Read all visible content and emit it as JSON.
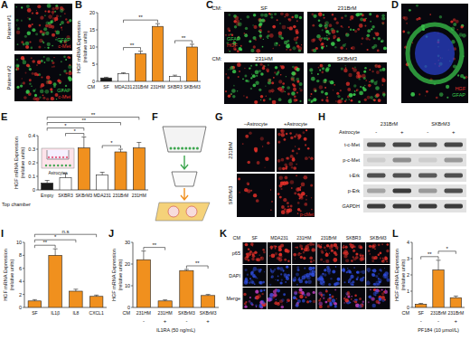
{
  "chart_data": [
    {
      "panel": "B",
      "type": "bar",
      "y_label": "HGF mRNA Expression (relative units)",
      "category_axis_label": "CM",
      "categories": [
        "SF",
        "MDA231",
        "231BrM",
        "231HM",
        "SKBR3",
        "SKBrM3"
      ],
      "values": [
        1,
        2.2,
        8,
        16,
        1.5,
        10
      ],
      "errors": [
        0.2,
        0.3,
        0.8,
        0.8,
        0.3,
        0.8
      ],
      "colors": [
        "#1a1a1a",
        "#ffffff",
        "#f0901e",
        "#f0901e",
        "#ffffff",
        "#f0901e"
      ],
      "ylim": [
        0,
        20
      ],
      "yticks": [
        0,
        5,
        10,
        15,
        20
      ],
      "significance": [
        {
          "from": 1,
          "to": 2,
          "label": "**"
        },
        {
          "from": 1,
          "to": 3,
          "label": "**"
        },
        {
          "from": 4,
          "to": 5,
          "label": "**"
        }
      ]
    },
    {
      "panel": "E",
      "type": "bar",
      "y_label": "HGF mRNA Expression (relative units)",
      "category_axis_label": "Top chamber",
      "inset_label": "Astrocytes",
      "categories": [
        "Empty",
        "SKBR3",
        "SKBrM3",
        "MDA231",
        "231BrM",
        "231HM"
      ],
      "values": [
        0.05,
        0.09,
        0.31,
        0.11,
        0.28,
        0.31
      ],
      "errors": [
        0.02,
        0.03,
        0.08,
        0.02,
        0.02,
        0.04
      ],
      "colors": [
        "#1a1a1a",
        "#ffffff",
        "#f0901e",
        "#ffffff",
        "#f0901e",
        "#f0901e"
      ],
      "ylim": [
        0,
        0.4
      ],
      "yticks": [
        0,
        0.1,
        0.2,
        0.3,
        0.4
      ],
      "significance": [
        {
          "from": 1,
          "to": 2,
          "label": "*"
        },
        {
          "from": 3,
          "to": 4,
          "label": "*"
        },
        {
          "from": 0,
          "to": 2,
          "label": "*"
        },
        {
          "from": 0,
          "to": 4,
          "label": "**"
        },
        {
          "from": 0,
          "to": 5,
          "label": "**"
        }
      ]
    },
    {
      "panel": "I",
      "type": "bar",
      "y_label": "HGF mRNA Expression (relative units)",
      "categories": [
        "SF",
        "IL1β",
        "IL8",
        "CXCL1"
      ],
      "values": [
        1,
        8,
        2.5,
        1.7
      ],
      "errors": [
        0.2,
        1,
        0.3,
        0.2
      ],
      "colors": [
        "#f0901e",
        "#f0901e",
        "#f0901e",
        "#f0901e"
      ],
      "ylim": [
        0,
        10
      ],
      "yticks": [
        0,
        2,
        4,
        6,
        8,
        10
      ],
      "significance": [
        {
          "from": 0,
          "to": 1,
          "label": "**"
        },
        {
          "from": 0,
          "to": 2,
          "label": "*"
        },
        {
          "from": 0,
          "to": 3,
          "label": "n.s"
        }
      ]
    },
    {
      "panel": "J",
      "type": "bar",
      "y_label": "HGF mRNA Expression (relative units)",
      "category_axis_label": "CM",
      "categories": [
        "231HM",
        "231HM",
        "SKBrM3",
        "SKBrM3"
      ],
      "treatment": {
        "label": "IL1RA (50 ng/mL)",
        "values": [
          "-",
          "+",
          "-",
          "+"
        ]
      },
      "values": [
        22,
        3,
        17,
        5.5
      ],
      "errors": [
        4,
        0.5,
        0.5,
        0.5
      ],
      "colors": [
        "#f0901e",
        "#f0901e",
        "#f0901e",
        "#f0901e"
      ],
      "ylim": [
        0,
        30
      ],
      "yticks": [
        0,
        10,
        20,
        30
      ],
      "significance": [
        {
          "from": 0,
          "to": 1,
          "label": "**"
        },
        {
          "from": 2,
          "to": 3,
          "label": "**"
        }
      ]
    },
    {
      "panel": "L",
      "type": "bar",
      "y_label": "HGF mRNA Expression (relative units)",
      "category_axis_label": "CM",
      "categories": [
        "SF",
        "231BrM",
        "231BrM"
      ],
      "treatment": {
        "label": "PF184 (10 μmol/L)",
        "values": [
          "-",
          "-",
          "+"
        ]
      },
      "values": [
        0.2,
        2.3,
        0.6
      ],
      "errors": [
        0.05,
        0.6,
        0.1
      ],
      "colors": [
        "#f0901e",
        "#f0901e",
        "#f0901e"
      ],
      "ylim": [
        0,
        4
      ],
      "yticks": [
        0,
        1,
        2,
        3,
        4
      ],
      "significance": [
        {
          "from": 0,
          "to": 1,
          "label": "**"
        },
        {
          "from": 1,
          "to": 2,
          "label": "*"
        }
      ]
    }
  ],
  "image_panels": [
    {
      "panel": "A",
      "rows": [
        "Patient #1",
        "Patient #2"
      ],
      "stains": [
        {
          "name": "GFAP",
          "color": "#3ccf4e"
        },
        {
          "name": "c-Met",
          "color": "#e8312a"
        }
      ]
    },
    {
      "panel": "C",
      "prefix": "CM:",
      "images": [
        "SF",
        "231BrM",
        "231HM",
        "SKBrM3"
      ],
      "stains": [
        {
          "name": "GFAP",
          "color": "#3ccf4e"
        },
        {
          "name": "HGF",
          "color": "#e8312a"
        }
      ]
    },
    {
      "panel": "D",
      "stains": [
        {
          "name": "HGF",
          "color": "#e8312a"
        },
        {
          "name": "GFAP",
          "color": "#3ccf4e"
        }
      ]
    },
    {
      "panel": "F"
    },
    {
      "panel": "G",
      "columns": [
        "–Astrocyte",
        "+Astrocyte"
      ],
      "rows": [
        "231BrM",
        "SKBrM3"
      ],
      "stains": [
        {
          "name": "p-cMet",
          "color": "#e8312a"
        }
      ]
    },
    {
      "panel": "H",
      "row_label": "Astrocyte",
      "cell_lines": [
        "231BrM",
        "SKBrM3"
      ],
      "lanes": [
        "-",
        "+",
        "-",
        "+"
      ],
      "bands": [
        {
          "name": "t-c-Met",
          "intensity": [
            0.7,
            0.75,
            0.7,
            0.75
          ]
        },
        {
          "name": "p-c-Met",
          "intensity": [
            0.1,
            0.4,
            0.1,
            0.35
          ]
        },
        {
          "name": "t-Erk",
          "intensity": [
            0.7,
            0.7,
            0.65,
            0.7
          ]
        },
        {
          "name": "p-Erk",
          "intensity": [
            0.3,
            0.8,
            0.35,
            0.7
          ]
        },
        {
          "name": "GAPDH",
          "intensity": [
            0.8,
            0.8,
            0.8,
            0.8
          ]
        }
      ]
    },
    {
      "panel": "K",
      "column_label": "CM",
      "columns": [
        "SF",
        "MDA231",
        "231HM",
        "231BrM",
        "SKBR3",
        "SKBrM3"
      ],
      "rows": [
        "p65",
        "DAPI",
        "Merge"
      ],
      "colors": [
        "#e8312a",
        "#3050e8",
        "#c040c0"
      ]
    }
  ]
}
